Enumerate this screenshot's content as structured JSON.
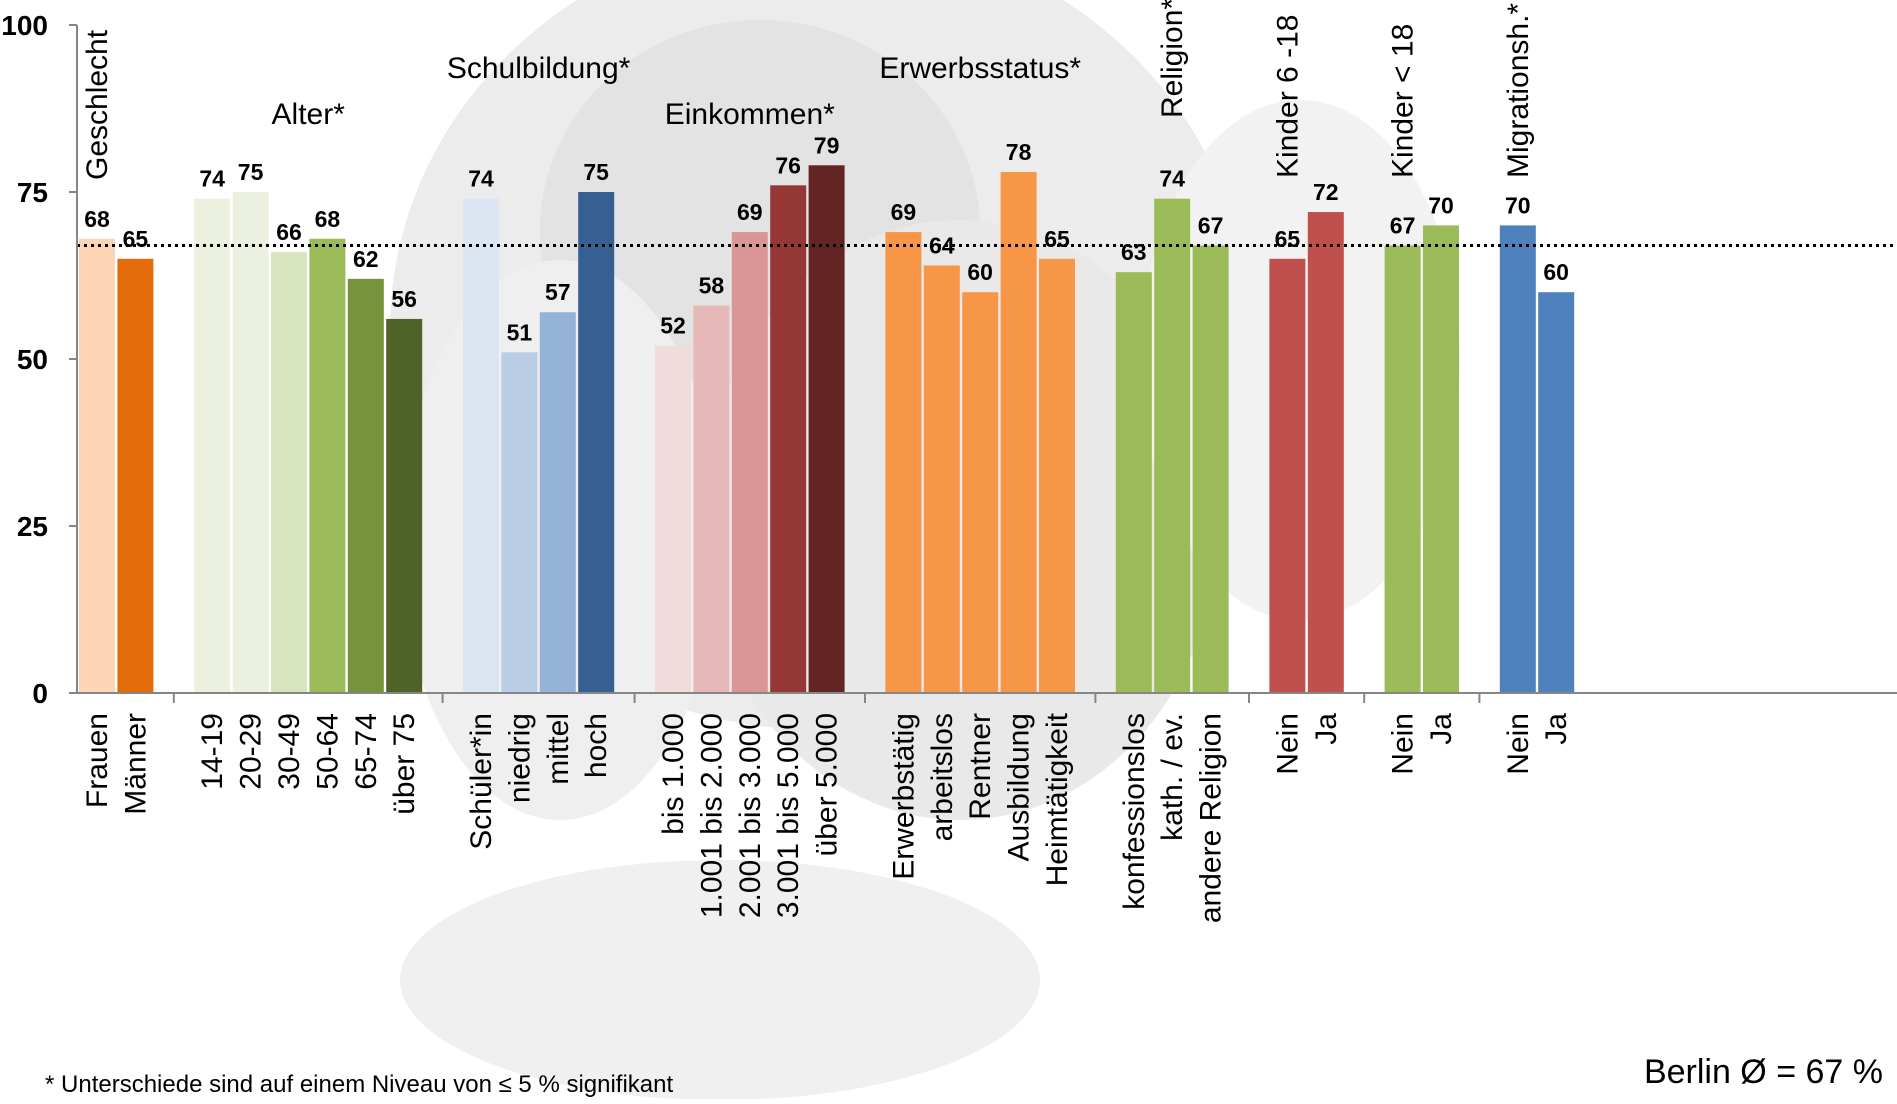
{
  "chart_data": {
    "type": "bar",
    "ylim": [
      0,
      100
    ],
    "yticks": [
      "0",
      "25",
      "50",
      "75",
      "100"
    ],
    "average_line": {
      "value": 67,
      "style": "dotted"
    },
    "average_label": "Berlin Ø = 67 %",
    "footnote": "* Unterschiede sind auf einem Niveau von ≤  5 % signifikant",
    "grid": false,
    "legend": "none",
    "groups": [
      {
        "name": "Geschlecht",
        "label_style": "vertical",
        "categories": [
          "Frauen",
          "Männer"
        ],
        "values": [
          68,
          65
        ],
        "colors": [
          "#fcd5b5",
          "#e46c0a"
        ]
      },
      {
        "name": "Alter*",
        "label_style": "horizontal",
        "categories": [
          "14-19",
          "20-29",
          "30-49",
          "50-64",
          "65-74",
          "über 75"
        ],
        "values": [
          74,
          75,
          66,
          68,
          62,
          56
        ],
        "colors": [
          "#ebf1de",
          "#ebf1de",
          "#d7e4bd",
          "#9bbb59",
          "#77933c",
          "#4f6228"
        ]
      },
      {
        "name": "Schulbildung*",
        "label_style": "horizontal",
        "categories": [
          "Schüler*in",
          "niedrig",
          "mittel",
          "hoch"
        ],
        "values": [
          74,
          51,
          57,
          75
        ],
        "colors": [
          "#dce6f2",
          "#b9cde5",
          "#95b3d7",
          "#376092"
        ]
      },
      {
        "name": "Einkommen*",
        "label_style": "horizontal",
        "categories": [
          "bis 1.000",
          "1.001 bis 2.000",
          "2.001 bis 3.000",
          "3.001 bis 5.000",
          "über 5.000"
        ],
        "values": [
          52,
          58,
          69,
          76,
          79
        ],
        "colors": [
          "#f2dcdb",
          "#e6b9b8",
          "#d99694",
          "#953735",
          "#632523"
        ]
      },
      {
        "name": "Erwerbsstatus*",
        "label_style": "horizontal",
        "categories": [
          "Erwerbstätig",
          "arbeitslos",
          "Rentner",
          "Ausbildung",
          "Heimtätigkeit"
        ],
        "values": [
          69,
          64,
          60,
          78,
          65
        ],
        "colors": [
          "#f79646",
          "#f79646",
          "#f79646",
          "#f79646",
          "#f79646"
        ]
      },
      {
        "name": "Religion*",
        "label_style": "vertical",
        "categories": [
          "konfessionslos",
          "kath. / ev.",
          "andere Religion"
        ],
        "values": [
          63,
          74,
          67
        ],
        "colors": [
          "#9bbb59",
          "#9bbb59",
          "#9bbb59"
        ]
      },
      {
        "name": "Kinder  6 -18",
        "label_style": "vertical",
        "categories": [
          "Nein",
          "Ja"
        ],
        "values": [
          65,
          72
        ],
        "colors": [
          "#c0504d",
          "#c0504d"
        ]
      },
      {
        "name": "Kinder  < 18",
        "label_style": "vertical",
        "categories": [
          "Nein",
          "Ja"
        ],
        "values": [
          67,
          70
        ],
        "colors": [
          "#9bbb59",
          "#9bbb59"
        ]
      },
      {
        "name": "Migrationsh.*",
        "label_style": "vertical",
        "categories": [
          "Nein",
          "Ja"
        ],
        "values": [
          70,
          60
        ],
        "colors": [
          "#4f81bd",
          "#4f81bd"
        ]
      }
    ]
  }
}
